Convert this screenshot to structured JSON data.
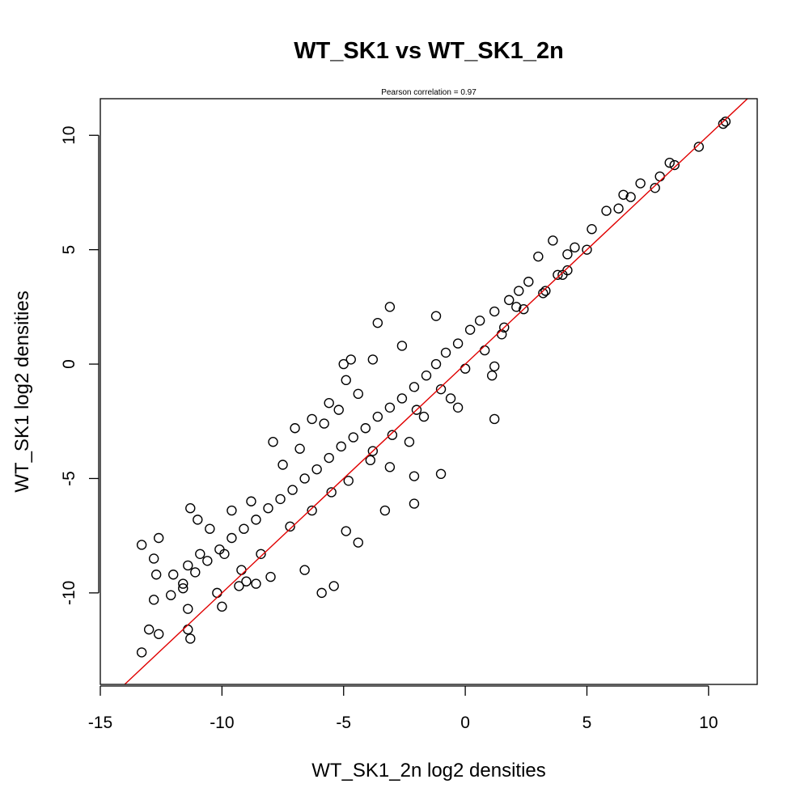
{
  "chart_data": {
    "type": "scatter",
    "title": "WT_SK1 vs WT_SK1_2n",
    "subtitle": "Pearson correlation =  0.97",
    "xlabel": "WT_SK1_2n log2 densities",
    "ylabel": "WT_SK1 log2 densities",
    "xlim": [
      -15.0,
      12.0
    ],
    "ylim": [
      -14.0,
      11.6
    ],
    "x_ticks": [
      -15,
      -10,
      -5,
      0,
      5,
      10
    ],
    "y_ticks": [
      -10,
      -5,
      0,
      5,
      10
    ],
    "x_tick_labels": [
      "-15",
      "-10",
      "-5",
      "0",
      "5",
      "10"
    ],
    "y_tick_labels": [
      "-10",
      "-5",
      "0",
      "5",
      "10"
    ],
    "grid": false,
    "point_marker": "open-circle",
    "point_color": "#000000",
    "reference_line": {
      "type": "identity",
      "slope": 1,
      "intercept": 0,
      "color": "#e00000"
    },
    "series": [
      {
        "points": [
          [
            10.7,
            10.6
          ],
          [
            10.6,
            10.5
          ],
          [
            9.6,
            9.5
          ],
          [
            8.6,
            8.7
          ],
          [
            8.4,
            8.8
          ],
          [
            8.0,
            8.2
          ],
          [
            7.8,
            7.7
          ],
          [
            7.2,
            7.9
          ],
          [
            6.8,
            7.3
          ],
          [
            6.5,
            7.4
          ],
          [
            6.3,
            6.8
          ],
          [
            5.8,
            6.7
          ],
          [
            5.2,
            5.9
          ],
          [
            4.5,
            5.1
          ],
          [
            4.2,
            4.8
          ],
          [
            3.6,
            5.4
          ],
          [
            3.0,
            4.7
          ],
          [
            2.6,
            3.6
          ],
          [
            2.2,
            3.2
          ],
          [
            1.8,
            2.8
          ],
          [
            1.2,
            2.3
          ],
          [
            0.6,
            1.9
          ],
          [
            0.2,
            1.5
          ],
          [
            -0.3,
            0.9
          ],
          [
            -0.8,
            0.5
          ],
          [
            -1.2,
            0.0
          ],
          [
            -1.6,
            -0.5
          ],
          [
            -2.1,
            -1.0
          ],
          [
            -2.6,
            -1.5
          ],
          [
            -3.1,
            -1.9
          ],
          [
            -3.6,
            -2.3
          ],
          [
            -4.1,
            -2.8
          ],
          [
            -4.6,
            -3.2
          ],
          [
            -5.1,
            -3.6
          ],
          [
            -5.6,
            -4.1
          ],
          [
            -6.1,
            -4.6
          ],
          [
            -6.6,
            -5.0
          ],
          [
            -7.1,
            -5.5
          ],
          [
            -7.6,
            -5.9
          ],
          [
            -8.1,
            -6.3
          ],
          [
            -8.6,
            -6.8
          ],
          [
            -9.1,
            -7.2
          ],
          [
            -9.6,
            -7.6
          ],
          [
            -10.1,
            -8.1
          ],
          [
            -10.6,
            -8.6
          ],
          [
            -11.1,
            -9.1
          ],
          [
            -11.6,
            -9.6
          ],
          [
            -12.1,
            -10.1
          ],
          [
            -13.3,
            -12.6
          ],
          [
            -13.0,
            -11.6
          ],
          [
            -12.6,
            -11.8
          ],
          [
            -13.3,
            -7.9
          ],
          [
            -12.6,
            -7.6
          ],
          [
            -12.8,
            -8.5
          ],
          [
            -12.7,
            -9.2
          ],
          [
            -12.8,
            -10.3
          ],
          [
            -11.6,
            -9.8
          ],
          [
            -11.4,
            -10.7
          ],
          [
            -11.4,
            -11.6
          ],
          [
            -11.3,
            -12.0
          ],
          [
            -11.3,
            -6.3
          ],
          [
            -11.0,
            -6.8
          ],
          [
            -10.2,
            -10.0
          ],
          [
            -10.0,
            -10.6
          ],
          [
            -9.0,
            -9.5
          ],
          [
            -8.0,
            -9.3
          ],
          [
            -6.6,
            -9.0
          ],
          [
            -5.9,
            -10.0
          ],
          [
            -5.4,
            -9.7
          ],
          [
            -4.4,
            -7.8
          ],
          [
            -4.9,
            -7.3
          ],
          [
            -3.3,
            -6.4
          ],
          [
            -2.1,
            -6.1
          ],
          [
            -1.0,
            -4.8
          ],
          [
            -2.1,
            -4.9
          ],
          [
            -3.1,
            -4.5
          ],
          [
            -3.8,
            -3.8
          ],
          [
            -2.3,
            -3.4
          ],
          [
            -1.7,
            -2.3
          ],
          [
            -0.3,
            -1.9
          ],
          [
            -0.6,
            -1.5
          ],
          [
            1.2,
            -2.4
          ],
          [
            1.1,
            -0.5
          ],
          [
            1.2,
            -0.1
          ],
          [
            -4.9,
            -0.7
          ],
          [
            -5.0,
            0.0
          ],
          [
            -4.7,
            0.2
          ],
          [
            -3.1,
            2.5
          ],
          [
            -3.6,
            1.8
          ],
          [
            -1.2,
            2.1
          ],
          [
            3.8,
            3.9
          ],
          [
            4.2,
            4.1
          ],
          [
            5.0,
            5.0
          ],
          [
            3.2,
            3.1
          ],
          [
            2.1,
            2.5
          ],
          [
            1.5,
            1.3
          ],
          [
            -8.8,
            -6.0
          ],
          [
            -7.5,
            -4.4
          ],
          [
            -6.8,
            -3.7
          ],
          [
            -5.8,
            -2.6
          ],
          [
            -5.2,
            -2.0
          ],
          [
            -4.4,
            -1.3
          ],
          [
            -9.6,
            -6.4
          ],
          [
            -10.5,
            -7.2
          ],
          [
            -9.9,
            -8.3
          ],
          [
            -8.4,
            -8.3
          ],
          [
            -7.2,
            -7.1
          ],
          [
            -6.3,
            -6.4
          ],
          [
            -5.5,
            -5.6
          ],
          [
            -4.8,
            -5.1
          ],
          [
            -3.9,
            -4.2
          ],
          [
            -3.0,
            -3.1
          ],
          [
            -2.0,
            -2.0
          ],
          [
            -1.0,
            -1.1
          ],
          [
            0.0,
            -0.2
          ],
          [
            0.8,
            0.6
          ],
          [
            1.6,
            1.6
          ],
          [
            2.4,
            2.4
          ],
          [
            3.3,
            3.2
          ],
          [
            4.0,
            3.9
          ],
          [
            -9.2,
            -9.0
          ],
          [
            -8.6,
            -9.6
          ],
          [
            -9.3,
            -9.7
          ],
          [
            -10.9,
            -8.3
          ],
          [
            -11.4,
            -8.8
          ],
          [
            -12.0,
            -9.2
          ],
          [
            -7.9,
            -3.4
          ],
          [
            -7.0,
            -2.8
          ],
          [
            -6.3,
            -2.4
          ],
          [
            -5.6,
            -1.7
          ],
          [
            -3.8,
            0.2
          ],
          [
            -2.6,
            0.8
          ]
        ]
      }
    ]
  }
}
